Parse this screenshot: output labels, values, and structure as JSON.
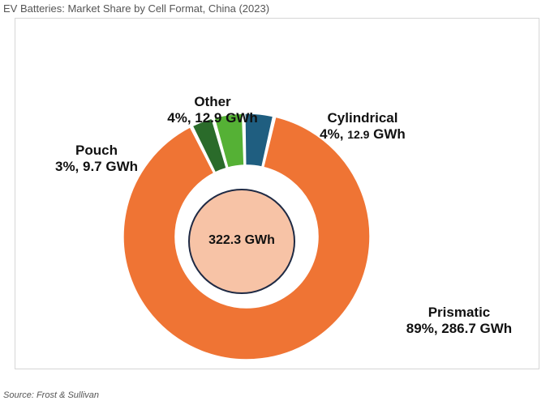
{
  "title": "EV Batteries:  Market Share by Cell Format, China (2023)",
  "source": "Source: Frost & Sullivan",
  "chart_data": {
    "type": "pie",
    "variant": "donut",
    "title": "EV Batteries:  Market Share by Cell Format, China (2023)",
    "total_label": "322.3 GWh",
    "total_gwh": 322.3,
    "slices": [
      {
        "label": "Prismatic",
        "percent": 89,
        "value_gwh": 286.7,
        "value_text": "89%, 286.7 GWh",
        "color": "#ef7434"
      },
      {
        "label": "Pouch",
        "percent": 3,
        "value_gwh": 9.7,
        "value_text": "3%, 9.7 GWh",
        "color": "#2a6b2a"
      },
      {
        "label": "Other",
        "percent": 4,
        "value_gwh": 12.9,
        "value_text": "4%, 12.9 GWh",
        "color": "#55b135"
      },
      {
        "label": "Cylindrical",
        "percent": 4,
        "value_gwh": 12.9,
        "value_text_pct": "4%, ",
        "value_text_num": "12.9",
        "value_text_unit": " GWh",
        "color": "#1f5e80"
      }
    ],
    "center_fill": "#f7c3a6",
    "center_stroke": "#1f2a44",
    "legend": "none"
  }
}
